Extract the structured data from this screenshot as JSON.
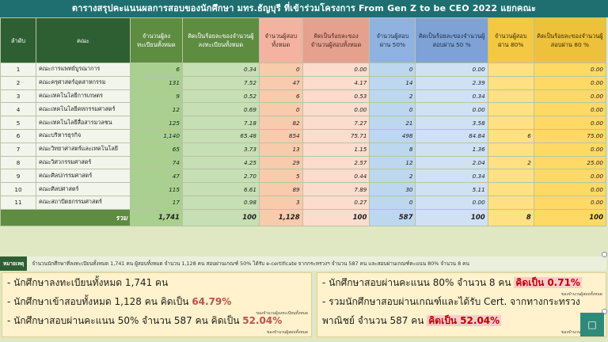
{
  "title": "ตารางสรุปคะแนนผลการสอบของนักศึกษา มทร.ธัญบุรี ที่เข้าร่วมโครงการ From Gen Z to be CEO 2022 แยกคณะ",
  "headers": [
    "ลำดับ",
    "คณะ",
    "จำนวนผู้ลงทะเบียนทั้งหมด",
    "คิดเป็นร้อยละของจำนวนผู้ลงทะเบียนทั้งหมด",
    "จำนวนผู้สอบทั้งหมด",
    "คิดเป็นร้อยละของจำนวนผู้สอบทั้งหมด",
    "จำนวนผู้สอบผ่าน 50%",
    "คิดเป็นร้อยละของจำนวนผู้สอบผ่าน 50 %",
    "จำนวนผู้สอบผ่าน 80%",
    "คิดเป็นร้อยละของจำนวนผู้สอบผ่าน 80 %"
  ],
  "rows": [
    [
      "1",
      "คณะการแพทย์บูรณาการ",
      "6",
      "0.34",
      "0",
      "0.00",
      "0",
      "0.00",
      "",
      "0.00"
    ],
    [
      "2",
      "คณะครุศาสตร์อุตสาหกรรม",
      "131",
      "7.52",
      "47",
      "4.17",
      "14",
      "2.39",
      "",
      "0.00"
    ],
    [
      "3",
      "คณะเทคโนโลยีการเกษตร",
      "9",
      "0.52",
      "6",
      "0.53",
      "2",
      "0.34",
      "",
      "0.00"
    ],
    [
      "4",
      "คณะเทคโนโลยีคหกรรมศาสตร์",
      "12",
      "0.69",
      "0",
      "0.00",
      "0",
      "0.00",
      "",
      "0.00"
    ],
    [
      "5",
      "คณะเทคโนโลยีสื่อสารมวลชน",
      "125",
      "7.18",
      "82",
      "7.27",
      "21",
      "3.58",
      "",
      "0.00"
    ],
    [
      "6",
      "คณะบริหารธุรกิจ",
      "1,140",
      "65.48",
      "854",
      "75.71",
      "498",
      "84.84",
      "6",
      "75.00"
    ],
    [
      "7",
      "คณะวิทยาศาสตร์และเทคโนโลยี",
      "65",
      "3.73",
      "13",
      "1.15",
      "8",
      "1.36",
      "",
      "0.00"
    ],
    [
      "8",
      "คณะวิศวกรรมศาสตร์",
      "74",
      "4.25",
      "29",
      "2.57",
      "12",
      "2.04",
      "2",
      "25.00"
    ],
    [
      "9",
      "คณะศิลปกรรมศาสตร์",
      "47",
      "2.70",
      "5",
      "0.44",
      "2",
      "0.34",
      "",
      "0.00"
    ],
    [
      "10",
      "คณะศิลปศาสตร์",
      "115",
      "6.61",
      "89",
      "7.89",
      "30",
      "5.11",
      "",
      "0.00"
    ],
    [
      "11",
      "คณะสถาปัตยกรรมศาสตร์",
      "17",
      "0.98",
      "3",
      "0.27",
      "0",
      "0.00",
      "",
      "0.00"
    ]
  ],
  "total": [
    "รวม",
    "1,741",
    "100",
    "1,128",
    "100",
    "587",
    "100",
    "8",
    "100"
  ],
  "note": {
    "label": "หมายเหตุ",
    "text": "จำนวนนักศึกษาที่ลงทะเบียนทั้งหมด 1,741 คน ผู้สอบทั้งหมด จำนวน 1,128 คน สอบผ่านเกณฑ์ 50% ได้รับ e-certificate จากกระทรวงฯ จำนวน 587 คน และสอบผ่านเกณฑ์คะแนน 80% จำนวน 8 คน"
  },
  "summary_left": [
    {
      "text": "- นักศึกษาลงทะเบียนทั้งหมด  1,741 คน",
      "hl": "",
      "sub": ""
    },
    {
      "text": "- นักศึกษาเข้าสอบทั้งหมด 1,128 คน คิดเป็น ",
      "hl": "64.79%",
      "sub": "ของจำนวนผู้ลงทะเบียนทั้งหมด"
    },
    {
      "text": "- นักศึกษาสอบผ่านคะแนน 50% จำนวน 587 คน คิดเป็น ",
      "hl": "52.04%",
      "sub": "ของจำนวนผู้สอบทั้งหมด"
    }
  ],
  "summary_right": [
    {
      "text": "- นักศึกษาสอบผ่านคะแนน 80% จำนวน 8 คน ",
      "hl": "คิดเป็น 0.71%",
      "sub": "ของจำนวนผู้สอบทั้งหมด"
    },
    {
      "text": "- รวมนักศึกษาสอบผ่านเกณฑ์และได้รับ Cert. จากทางกระทรวง",
      "hl": "",
      "sub": ""
    },
    {
      "text": "  พาณิชย์ จำนวน 587 คน ",
      "hl": "คิดเป็น 52.04%",
      "sub": "ของจำนวนผู้สอบทั้งหมด"
    }
  ],
  "corner_button": "□"
}
